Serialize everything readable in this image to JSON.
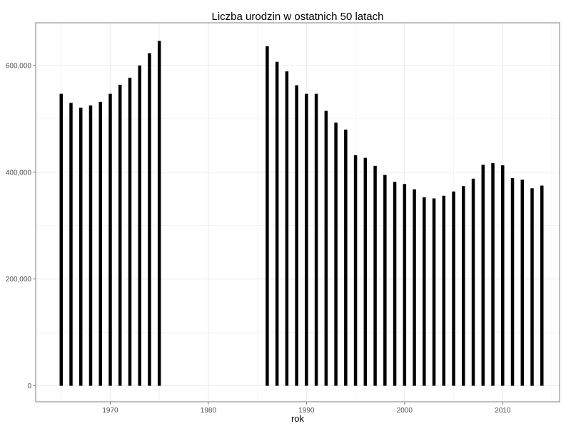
{
  "chart_data": {
    "type": "bar",
    "title": "Liczba urodzin w ostatnich 50 latach",
    "xlabel": "rok",
    "ylabel": "",
    "x": [
      1965,
      1966,
      1967,
      1968,
      1969,
      1970,
      1971,
      1972,
      1973,
      1974,
      1975,
      1986,
      1987,
      1988,
      1989,
      1990,
      1991,
      1992,
      1993,
      1994,
      1995,
      1996,
      1997,
      1998,
      1999,
      2000,
      2001,
      2002,
      2003,
      2004,
      2005,
      2006,
      2007,
      2008,
      2009,
      2010,
      2011,
      2012,
      2013,
      2014
    ],
    "values": [
      547000,
      530000,
      521000,
      525000,
      532000,
      547000,
      564000,
      577000,
      600000,
      623000,
      646000,
      636000,
      607000,
      589000,
      563000,
      547000,
      547000,
      515000,
      493000,
      480000,
      432000,
      427000,
      412000,
      395000,
      382000,
      378000,
      368000,
      353000,
      351000,
      356000,
      364000,
      374000,
      388000,
      414000,
      417000,
      413000,
      389000,
      386000,
      370000,
      375000
    ],
    "xlim": [
      1962.4,
      2015.8
    ],
    "ylim": [
      -30000,
      680000
    ],
    "xticks": [
      1970,
      1980,
      1990,
      2000,
      2010
    ],
    "xtick_labels": [
      "1970",
      "1980",
      "1990",
      "2000",
      "2010"
    ],
    "yticks": [
      0,
      200000,
      400000,
      600000
    ],
    "ytick_labels": [
      "0",
      "200,000",
      "400,000",
      "600,000"
    ],
    "grid": true,
    "legend": "none",
    "colors": {
      "bar": "#000000",
      "grid": "#ebebeb",
      "panel_border": "#7f7f7f",
      "text": "#000000",
      "tick_text": "#4d4d4d"
    }
  }
}
